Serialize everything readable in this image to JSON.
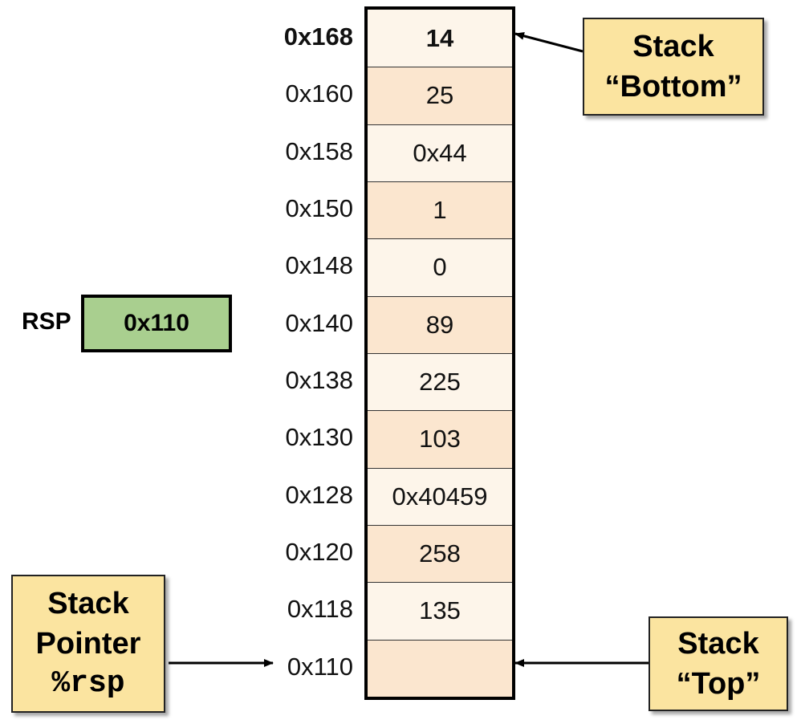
{
  "stack": {
    "rows": [
      {
        "address": "0x168",
        "value": "14"
      },
      {
        "address": "0x160",
        "value": "25"
      },
      {
        "address": "0x158",
        "value": "0x44"
      },
      {
        "address": "0x150",
        "value": "1"
      },
      {
        "address": "0x148",
        "value": "0"
      },
      {
        "address": "0x140",
        "value": "89"
      },
      {
        "address": "0x138",
        "value": "225"
      },
      {
        "address": "0x130",
        "value": "103"
      },
      {
        "address": "0x128",
        "value": "0x40459"
      },
      {
        "address": "0x120",
        "value": "258"
      },
      {
        "address": "0x118",
        "value": "135"
      },
      {
        "address": "0x110",
        "value": ""
      }
    ]
  },
  "register": {
    "label": "RSP",
    "value": "0x110"
  },
  "callouts": {
    "bottom": {
      "line1": "Stack",
      "line2": "“Bottom”"
    },
    "top": {
      "line1": "Stack",
      "line2": "“Top”"
    },
    "pointer": {
      "line1": "Stack",
      "line2": "Pointer",
      "line3": "%rsp"
    }
  },
  "colors": {
    "cell_light": "#fdf5ea",
    "cell_dark": "#fbe6cf",
    "callout_fill": "#fbe4a0",
    "register_fill": "#a9cf8f"
  }
}
